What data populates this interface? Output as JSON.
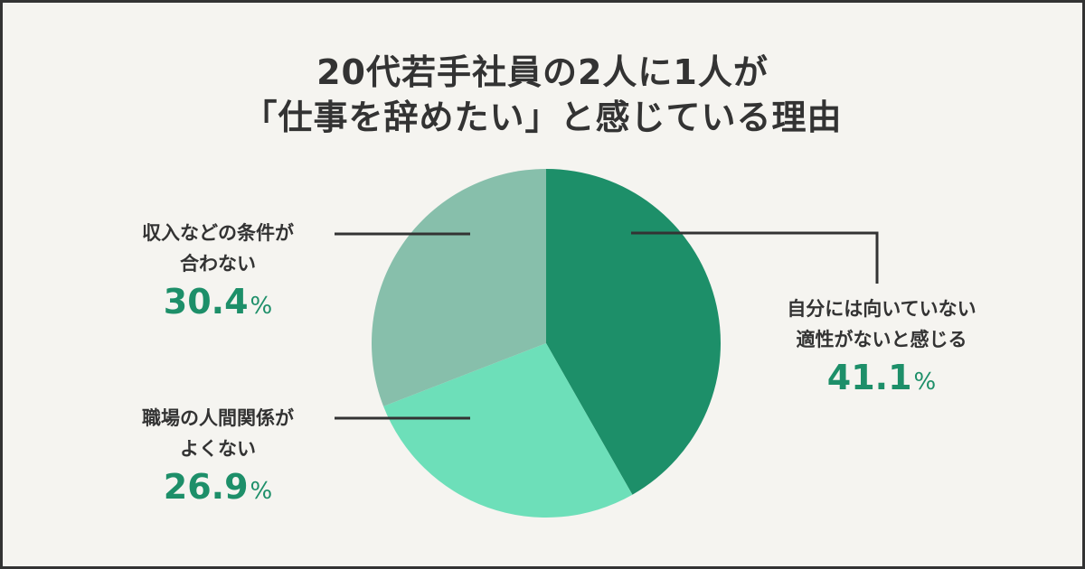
{
  "title": {
    "line1": "20代若手社員の2人に1人が",
    "line2": "「仕事を辞めたい」と感じている理由"
  },
  "labels": [
    {
      "line1": "自分には向いていない",
      "line2": "適性がないと感じる",
      "value": "41.1",
      "unit": "%"
    },
    {
      "line1": "職場の人間関係が",
      "line2": "よくない",
      "value": "26.9",
      "unit": "%"
    },
    {
      "line1": "収入などの条件が",
      "line2": "合わない",
      "value": "30.4",
      "unit": "%"
    }
  ],
  "colors": {
    "background": "#f5f4f0",
    "border": "#333333",
    "text": "#333333",
    "accent": "#1d8f69",
    "slice1": "#1d8f69",
    "slice2": "#6ddfb9",
    "slice3": "#87bfab"
  },
  "chart_data": {
    "type": "pie",
    "title": "20代若手社員の2人に1人が「仕事を辞めたい」と感じている理由",
    "categories": [
      "自分には向いていない 適性がないと感じる",
      "職場の人間関係がよくない",
      "収入などの条件が合わない"
    ],
    "values": [
      41.1,
      26.9,
      30.4
    ],
    "unit": "%",
    "start_angle": "12 o'clock, clockwise",
    "legend": "callout labels with leader lines"
  }
}
